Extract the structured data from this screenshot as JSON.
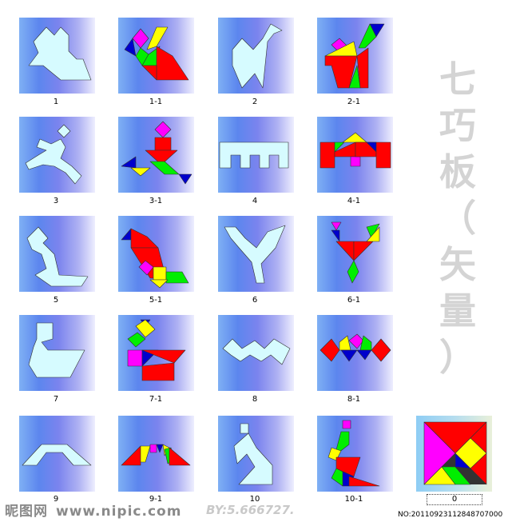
{
  "title_chars": [
    "七",
    "巧",
    "板",
    "（",
    "矢",
    "量",
    "）"
  ],
  "colors": {
    "silhouette": "#d6fbff",
    "red": "#ff0000",
    "yellow": "#ffff00",
    "green": "#00ee00",
    "blue": "#0000cc",
    "magenta": "#ff00ff",
    "outline": "#333333"
  },
  "tiles": [
    {
      "id": "t1",
      "label": "1"
    },
    {
      "id": "t1-1",
      "label": "1-1"
    },
    {
      "id": "t2",
      "label": "2"
    },
    {
      "id": "t2-1",
      "label": "2-1"
    },
    {
      "id": "t3",
      "label": "3"
    },
    {
      "id": "t3-1",
      "label": "3-1"
    },
    {
      "id": "t4",
      "label": "4"
    },
    {
      "id": "t4-1",
      "label": "4-1"
    },
    {
      "id": "t5",
      "label": "5"
    },
    {
      "id": "t5-1",
      "label": "5-1"
    },
    {
      "id": "t6",
      "label": "6"
    },
    {
      "id": "t6-1",
      "label": "6-1"
    },
    {
      "id": "t7",
      "label": "7"
    },
    {
      "id": "t7-1",
      "label": "7-1"
    },
    {
      "id": "t8",
      "label": "8"
    },
    {
      "id": "t8-1",
      "label": "8-1"
    },
    {
      "id": "t9",
      "label": "9"
    },
    {
      "id": "t9-1",
      "label": "9-1"
    },
    {
      "id": "t10",
      "label": "10"
    },
    {
      "id": "t10-1",
      "label": "10-1"
    },
    {
      "id": "t0",
      "label": "0"
    }
  ],
  "watermark": {
    "logo": "昵图网",
    "url": "www.nipic.com"
  },
  "author": "BY:5.666727.",
  "id_number": "NO:20110923112848707000"
}
